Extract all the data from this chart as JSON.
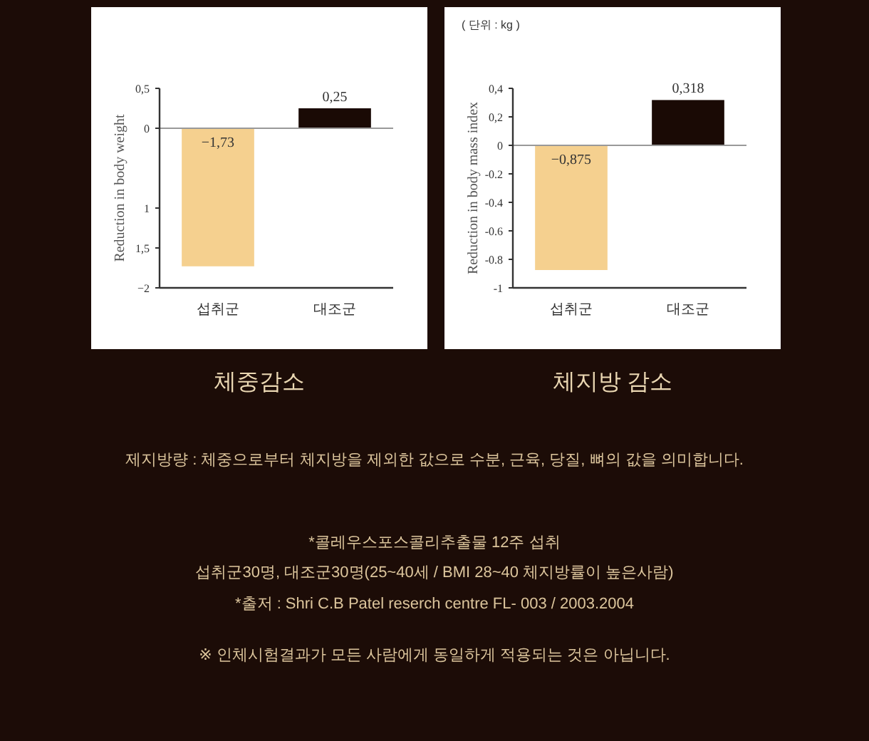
{
  "chart_data": [
    {
      "type": "bar",
      "title": "체중감소",
      "ylabel": "Reduction in body weight",
      "categories": [
        "섭취군",
        "대조군"
      ],
      "values": [
        -1.73,
        0.25
      ],
      "colors": [
        "#f5d08f",
        "#1a0a05"
      ],
      "value_labels": [
        "−1,73",
        "0,25"
      ],
      "ylim": [
        -2,
        0.5
      ],
      "yticks": [
        {
          "value": 0.5,
          "label": "0,5"
        },
        0,
        {
          "value": -1,
          "label": "1"
        },
        {
          "value": -1.5,
          "label": "1,5"
        },
        {
          "value": -2,
          "label": "−2"
        }
      ]
    },
    {
      "type": "bar",
      "title": "체지방 감소",
      "ylabel": "Reduction in body mass index",
      "categories": [
        "섭취군",
        "대조군"
      ],
      "values": [
        -0.875,
        0.318
      ],
      "colors": [
        "#f5d08f",
        "#1a0a05"
      ],
      "value_labels": [
        "−0,875",
        "0,318"
      ],
      "ylim": [
        -1,
        0.4
      ],
      "yticks": [
        {
          "value": 0.4,
          "label": "0,4"
        },
        {
          "value": 0.2,
          "label": "0,2"
        },
        0,
        {
          "value": -0.2,
          "label": "-0.2"
        },
        {
          "value": -0.4,
          "label": "-0.4"
        },
        {
          "value": -0.6,
          "label": "-0.6"
        },
        {
          "value": -0.8,
          "label": "-0.8"
        },
        {
          "value": -1,
          "label": "-1"
        }
      ],
      "annotations": [
        "( 단위 : kg )"
      ]
    },
    {
      "type": "other",
      "annotations": [
        "제지방량 : 체중으로부터 체지방을 제외한 값으로 수분, 근육, 당질, 뼈의 값을 의미합니다.",
        "*콜레우스포스콜리추출물 12주 섭취",
        "섭취군30명, 대조군30명(25~40세 / BMI 28~40 체지방률이 높은사람)",
        "*출저 : Shri C.B Patel reserch centre FL- 003 / 2003.2004",
        "※ 인체시험결과가 모든 사람에게 동일하게 적용되는 것은 아닙니다."
      ]
    }
  ]
}
